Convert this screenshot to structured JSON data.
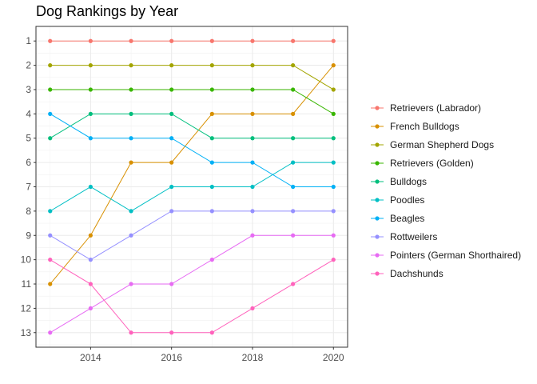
{
  "chart_data": {
    "type": "line",
    "title": "Dog Rankings by Year",
    "xlabel": "",
    "ylabel": "",
    "x": [
      2013,
      2014,
      2015,
      2016,
      2017,
      2018,
      2019,
      2020
    ],
    "xlim": [
      2012.65,
      2020.35
    ],
    "ylim": [
      0.4,
      13.6
    ],
    "y_reversed": true,
    "x_ticks": [
      2014,
      2016,
      2018,
      2020
    ],
    "y_ticks": [
      1,
      2,
      3,
      4,
      5,
      6,
      7,
      8,
      9,
      10,
      11,
      12,
      13
    ],
    "grid": true,
    "legend_position": "right",
    "series": [
      {
        "name": "Retrievers (Labrador)",
        "color": "#F8766D",
        "values": [
          1,
          1,
          1,
          1,
          1,
          1,
          1,
          1
        ]
      },
      {
        "name": "French Bulldogs",
        "color": "#D89000",
        "values": [
          11,
          9,
          6,
          6,
          4,
          4,
          4,
          2
        ]
      },
      {
        "name": "German Shepherd Dogs",
        "color": "#A3A500",
        "values": [
          2,
          2,
          2,
          2,
          2,
          2,
          2,
          3
        ]
      },
      {
        "name": "Retrievers (Golden)",
        "color": "#39B600",
        "values": [
          3,
          3,
          3,
          3,
          3,
          3,
          3,
          4
        ]
      },
      {
        "name": "Bulldogs",
        "color": "#00BF7D",
        "values": [
          5,
          4,
          4,
          4,
          5,
          5,
          5,
          5
        ]
      },
      {
        "name": "Poodles",
        "color": "#00BFC4",
        "values": [
          8,
          7,
          8,
          7,
          7,
          7,
          6,
          6
        ]
      },
      {
        "name": "Beagles",
        "color": "#00B0F6",
        "values": [
          4,
          5,
          5,
          5,
          6,
          6,
          7,
          7
        ]
      },
      {
        "name": "Rottweilers",
        "color": "#9590FF",
        "values": [
          9,
          10,
          9,
          8,
          8,
          8,
          8,
          8
        ]
      },
      {
        "name": "Pointers (German Shorthaired)",
        "color": "#E76BF3",
        "values": [
          13,
          12,
          11,
          11,
          10,
          9,
          9,
          9
        ]
      },
      {
        "name": "Dachshunds",
        "color": "#FF62BC",
        "values": [
          10,
          11,
          13,
          13,
          13,
          12,
          11,
          10
        ]
      }
    ]
  }
}
